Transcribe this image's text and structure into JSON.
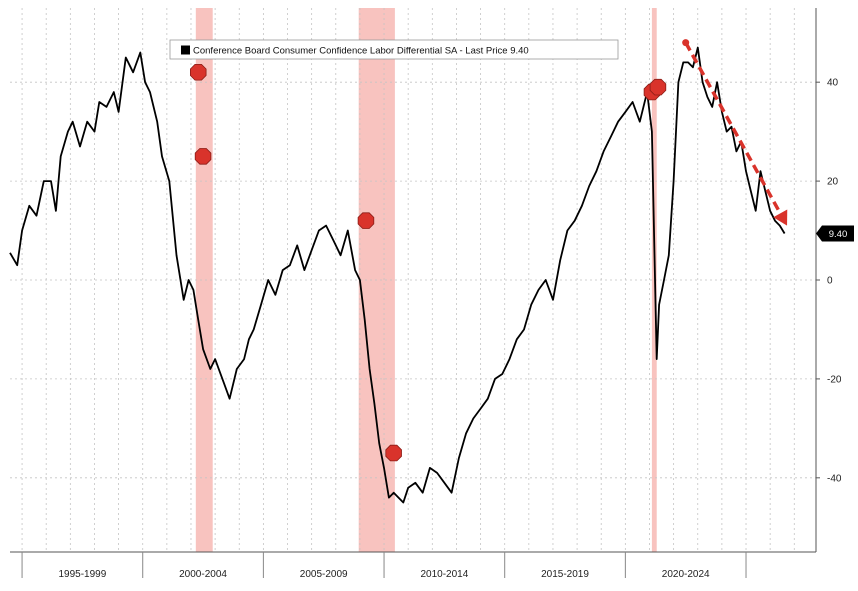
{
  "chart_data": {
    "type": "line",
    "title": "",
    "xlabel": "",
    "ylabel": "",
    "ylim": [
      -55,
      55
    ],
    "xlim": [
      1993.5,
      2026.9
    ],
    "grid": true,
    "legend_position": "top-left",
    "y_ticks": [
      40,
      20,
      0,
      -20,
      -40
    ],
    "y_tick_labels": [
      "40",
      "20",
      "0",
      "-20",
      "-40"
    ],
    "x_period_labels": [
      "1995-1999",
      "2000-2004",
      "2005-2009",
      "2010-2014",
      "2015-2019",
      "2020-2024"
    ],
    "x_period_breaks": [
      1994,
      1999,
      2004,
      2009,
      2014,
      2019,
      2024
    ],
    "series": [
      {
        "name": "Conference Board Consumer Confidence Labor Differential SA",
        "color": "#000000",
        "x": [
          1993.5,
          1993.8,
          1994.0,
          1994.3,
          1994.6,
          1994.9,
          1995.2,
          1995.4,
          1995.6,
          1995.9,
          1996.1,
          1996.4,
          1996.7,
          1997.0,
          1997.2,
          1997.5,
          1997.8,
          1998.0,
          1998.3,
          1998.6,
          1998.9,
          1999.1,
          1999.3,
          1999.6,
          1999.8,
          2000.1,
          2000.4,
          2000.7,
          2000.9,
          2001.1,
          2001.3,
          2001.5,
          2001.8,
          2002.0,
          2002.3,
          2002.6,
          2002.9,
          2003.2,
          2003.4,
          2003.6,
          2003.9,
          2004.2,
          2004.5,
          2004.8,
          2005.1,
          2005.4,
          2005.7,
          2006.0,
          2006.3,
          2006.6,
          2006.9,
          2007.2,
          2007.5,
          2007.8,
          2008.0,
          2008.2,
          2008.4,
          2008.6,
          2008.8,
          2009.0,
          2009.2,
          2009.4,
          2009.6,
          2009.8,
          2010.0,
          2010.3,
          2010.6,
          2010.9,
          2011.2,
          2011.5,
          2011.8,
          2012.1,
          2012.4,
          2012.7,
          2013.0,
          2013.3,
          2013.6,
          2013.9,
          2014.2,
          2014.5,
          2014.8,
          2015.1,
          2015.4,
          2015.7,
          2016.0,
          2016.3,
          2016.6,
          2016.9,
          2017.2,
          2017.5,
          2017.8,
          2018.1,
          2018.4,
          2018.7,
          2019.0,
          2019.3,
          2019.6,
          2019.9,
          2020.1,
          2020.3,
          2020.4,
          2020.6,
          2020.8,
          2021.0,
          2021.2,
          2021.4,
          2021.6,
          2021.8,
          2022.0,
          2022.2,
          2022.4,
          2022.6,
          2022.8,
          2023.0,
          2023.2,
          2023.4,
          2023.6,
          2023.8,
          2024.0,
          2024.2,
          2024.4,
          2024.6,
          2024.8,
          2025.0,
          2025.2,
          2025.4,
          2025.6
        ],
        "values": [
          5.5,
          3,
          10,
          15,
          13,
          20,
          20,
          14,
          25,
          30,
          32,
          27,
          32,
          30,
          36,
          35,
          38,
          34,
          45,
          42,
          46,
          40,
          38,
          32,
          25,
          20,
          5,
          -4,
          0,
          -2,
          -8,
          -14,
          -18,
          -16,
          -20,
          -24,
          -18,
          -16,
          -12,
          -10,
          -5,
          0,
          -3,
          2,
          3,
          7,
          2,
          6,
          10,
          11,
          8,
          5,
          10,
          2,
          0,
          -8,
          -18,
          -25,
          -33,
          -38,
          -44,
          -43,
          -44,
          -45,
          -42,
          -41,
          -43,
          -38,
          -39,
          -41,
          -43,
          -36,
          -31,
          -28,
          -26,
          -24,
          -20,
          -19,
          -16,
          -12,
          -10,
          -5,
          -2,
          0,
          -4,
          4,
          10,
          12,
          15,
          19,
          22,
          26,
          29,
          32,
          34,
          36,
          32,
          38,
          30,
          -16,
          -5,
          0,
          5,
          20,
          40,
          44,
          44,
          43,
          47,
          40,
          37,
          35,
          40,
          34,
          30,
          31,
          26,
          28,
          22,
          18,
          14,
          22,
          18,
          14,
          12,
          11,
          9.4
        ]
      }
    ],
    "last_price_label": "Last Price",
    "last_value": 9.4,
    "last_value_label": "9.40",
    "legend_label": "Conference Board Consumer Confidence Labor Differential SA - Last Price 9.40",
    "recessions": [
      {
        "start": 2001.2,
        "end": 2001.9
      },
      {
        "start": 2007.95,
        "end": 2009.45
      },
      {
        "start": 2020.1,
        "end": 2020.3
      }
    ],
    "recession_color": "#f7b8b4",
    "markers": [
      {
        "x": 2001.3,
        "y": 42
      },
      {
        "x": 2001.5,
        "y": 25
      },
      {
        "x": 2008.25,
        "y": 12
      },
      {
        "x": 2009.4,
        "y": -35
      },
      {
        "x": 2020.1,
        "y": 38
      },
      {
        "x": 2020.35,
        "y": 39
      }
    ],
    "marker_color": "#d9332b",
    "trend_arrow": {
      "x0": 2021.5,
      "y0": 48,
      "x1": 2025.7,
      "y1": 11
    },
    "trend_arrow_color": "#d9332b"
  }
}
